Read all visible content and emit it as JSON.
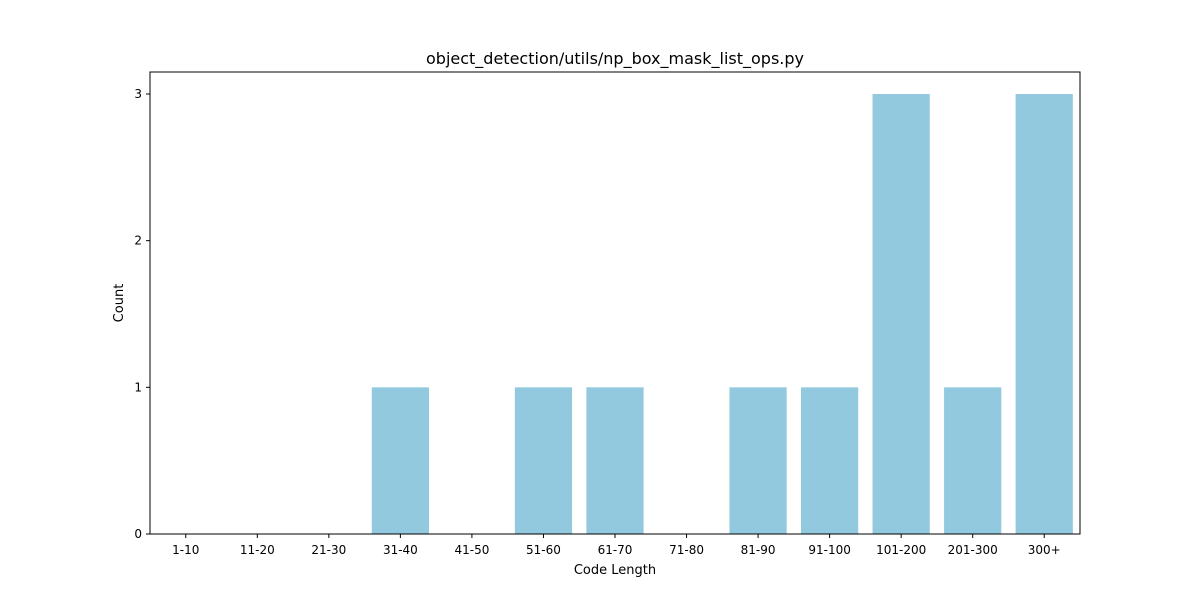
{
  "chart_data": {
    "type": "bar",
    "title": "object_detection/utils/np_box_mask_list_ops.py",
    "xlabel": "Code Length",
    "ylabel": "Count",
    "categories": [
      "1-10",
      "11-20",
      "21-30",
      "31-40",
      "41-50",
      "51-60",
      "61-70",
      "71-80",
      "81-90",
      "91-100",
      "101-200",
      "201-300",
      "300+"
    ],
    "values": [
      0,
      0,
      0,
      1,
      0,
      1,
      1,
      0,
      1,
      1,
      3,
      1,
      3
    ],
    "yticks": [
      0,
      1,
      2,
      3
    ],
    "ylim": [
      0,
      3.15
    ],
    "bar_color": "#92c9de",
    "grid": false,
    "legend": "none"
  }
}
